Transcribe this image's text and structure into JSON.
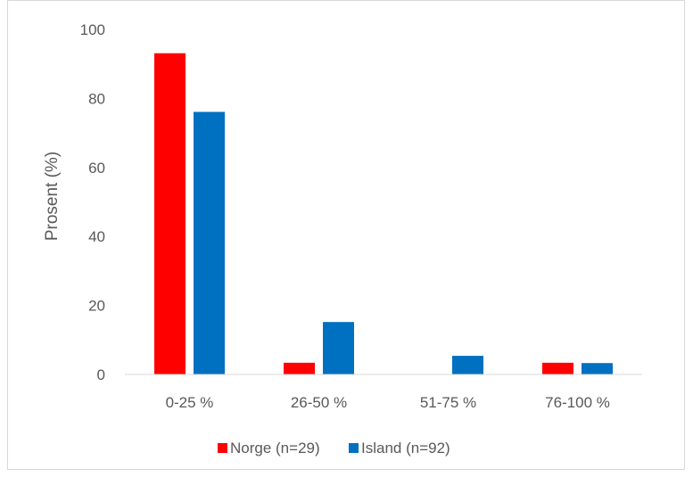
{
  "chart_data": {
    "type": "bar",
    "title": "",
    "xlabel": "",
    "ylabel": "Prosent (%)",
    "ylim": [
      0,
      100
    ],
    "yticks": [
      0,
      20,
      40,
      60,
      80,
      100
    ],
    "categories": [
      "0-25 %",
      "26-50 %",
      "51-75 %",
      "76-100 %"
    ],
    "series": [
      {
        "name": "Norge (n=29)",
        "color": "#ff0000",
        "values": [
          93.1,
          3.4,
          0,
          3.4
        ]
      },
      {
        "name": "Island (n=92)",
        "color": "#0070c0",
        "values": [
          76.1,
          15.2,
          5.4,
          3.3
        ]
      }
    ],
    "grid": false,
    "legend": "bottom"
  }
}
